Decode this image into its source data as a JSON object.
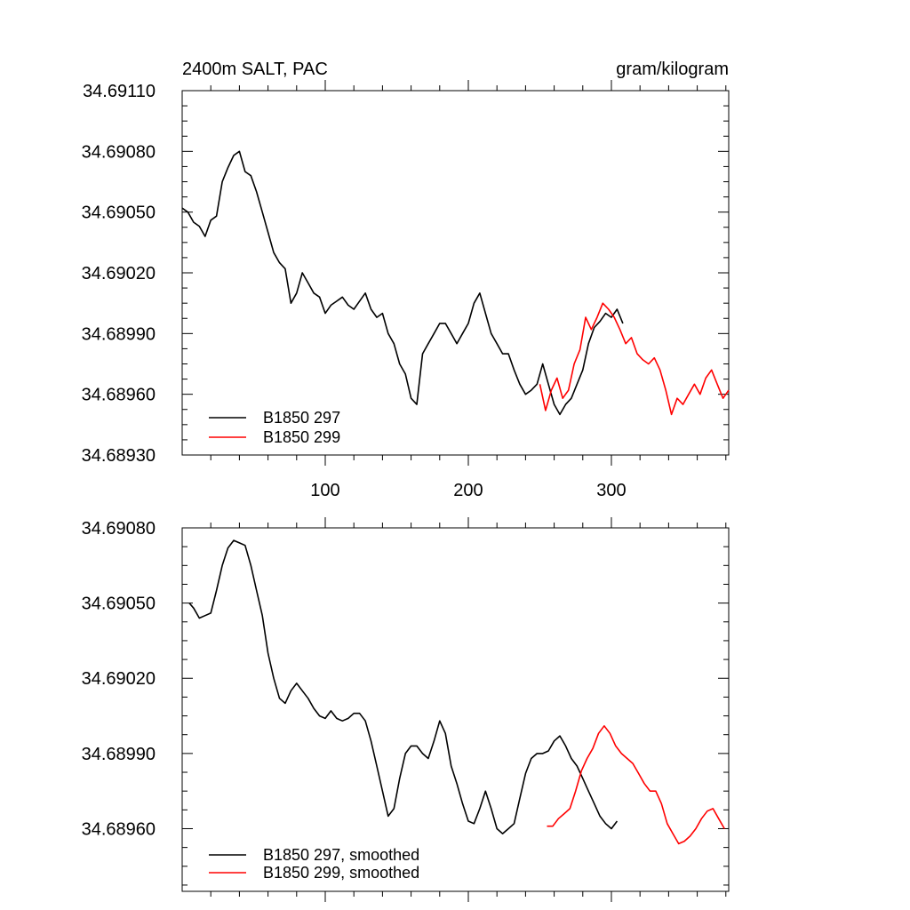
{
  "chart_data": [
    {
      "type": "line",
      "title": "2400m SALT, PAC",
      "units": "gram/kilogram",
      "xlabel": "",
      "ylabel": "",
      "xlim": [
        0,
        382
      ],
      "ylim": [
        34.6893,
        34.6911
      ],
      "x_ticks": [
        100,
        200,
        300
      ],
      "x_tick_labels": [
        "100",
        "200",
        "300"
      ],
      "y_ticks": [
        34.6893,
        34.6896,
        34.6899,
        34.6902,
        34.6905,
        34.6908,
        34.6911
      ],
      "y_tick_labels": [
        "34.68930",
        "34.68960",
        "34.68990",
        "34.69020",
        "34.69050",
        "34.69080",
        "34.69110"
      ],
      "grid": false,
      "legend_position": "bottom-left",
      "series": [
        {
          "name": "B1850 297",
          "color": "#000000",
          "x": [
            0,
            4,
            8,
            12,
            16,
            20,
            24,
            28,
            32,
            36,
            40,
            44,
            48,
            52,
            56,
            60,
            64,
            68,
            72,
            76,
            80,
            84,
            88,
            92,
            96,
            100,
            104,
            108,
            112,
            116,
            120,
            124,
            128,
            132,
            136,
            140,
            144,
            148,
            152,
            156,
            160,
            164,
            168,
            172,
            176,
            180,
            184,
            188,
            192,
            196,
            200,
            204,
            208,
            212,
            216,
            220,
            224,
            228,
            232,
            236,
            240,
            244,
            248,
            252,
            256,
            260,
            264,
            268,
            272,
            276,
            280,
            284,
            288,
            292,
            296,
            300,
            304,
            308
          ],
          "values": [
            34.69052,
            34.6905,
            34.69045,
            34.69043,
            34.69038,
            34.69046,
            34.69048,
            34.69065,
            34.69072,
            34.69078,
            34.6908,
            34.6907,
            34.69068,
            34.6906,
            34.6905,
            34.6904,
            34.6903,
            34.69025,
            34.69022,
            34.69005,
            34.6901,
            34.6902,
            34.69015,
            34.6901,
            34.69008,
            34.69,
            34.69004,
            34.69006,
            34.69008,
            34.69004,
            34.69002,
            34.69006,
            34.6901,
            34.69002,
            34.68998,
            34.69,
            34.6899,
            34.68985,
            34.68975,
            34.6897,
            34.68958,
            34.68955,
            34.6898,
            34.68985,
            34.6899,
            34.68995,
            34.68995,
            34.6899,
            34.68985,
            34.6899,
            34.68995,
            34.69005,
            34.6901,
            34.69,
            34.6899,
            34.68985,
            34.6898,
            34.6898,
            34.68972,
            34.68965,
            34.6896,
            34.68962,
            34.68965,
            34.68975,
            34.68965,
            34.68955,
            34.6895,
            34.68955,
            34.68958,
            34.68965,
            34.68972,
            34.68985,
            34.68993,
            34.68996,
            34.69,
            34.68998,
            34.69002,
            34.68995
          ]
        },
        {
          "name": "B1850 299",
          "color": "#ff0000",
          "x": [
            250,
            254,
            258,
            262,
            266,
            270,
            274,
            278,
            282,
            286,
            290,
            294,
            298,
            302,
            306,
            310,
            314,
            318,
            322,
            326,
            330,
            334,
            338,
            342,
            346,
            350,
            354,
            358,
            362,
            366,
            370,
            374,
            378,
            382
          ],
          "values": [
            34.68965,
            34.68952,
            34.68962,
            34.68968,
            34.68958,
            34.68962,
            34.68975,
            34.68982,
            34.68998,
            34.68992,
            34.68998,
            34.69005,
            34.69002,
            34.68998,
            34.68992,
            34.68985,
            34.68988,
            34.6898,
            34.68977,
            34.68975,
            34.68978,
            34.68972,
            34.68962,
            34.6895,
            34.68958,
            34.68955,
            34.6896,
            34.68965,
            34.6896,
            34.68968,
            34.68972,
            34.68965,
            34.68958,
            34.68962
          ]
        }
      ]
    },
    {
      "type": "line",
      "title": "",
      "xlabel": "",
      "ylabel": "",
      "xlim": [
        0,
        382
      ],
      "ylim": [
        34.68935,
        34.6908
      ],
      "x_ticks": [
        100,
        200,
        300
      ],
      "x_tick_labels": [
        "",
        "",
        ""
      ],
      "y_ticks": [
        34.6896,
        34.6899,
        34.6902,
        34.6905,
        34.6908
      ],
      "y_tick_labels": [
        "34.68960",
        "34.68990",
        "34.69020",
        "34.69050",
        "34.69080"
      ],
      "grid": false,
      "legend_position": "bottom-left",
      "series": [
        {
          "name": "B1850 297, smoothed",
          "color": "#000000",
          "x": [
            5,
            8,
            12,
            16,
            20,
            24,
            28,
            32,
            36,
            40,
            44,
            48,
            52,
            56,
            60,
            64,
            68,
            72,
            76,
            80,
            84,
            88,
            92,
            96,
            100,
            104,
            108,
            112,
            116,
            120,
            124,
            128,
            132,
            136,
            140,
            144,
            148,
            152,
            156,
            160,
            164,
            168,
            172,
            176,
            180,
            184,
            188,
            192,
            196,
            200,
            204,
            208,
            212,
            216,
            220,
            224,
            228,
            232,
            236,
            240,
            244,
            248,
            252,
            256,
            260,
            264,
            268,
            272,
            276,
            280,
            284,
            288,
            292,
            296,
            300,
            304
          ],
          "values": [
            34.6905,
            34.69048,
            34.69044,
            34.69045,
            34.69046,
            34.69055,
            34.69065,
            34.69072,
            34.69075,
            34.69074,
            34.69073,
            34.69065,
            34.69055,
            34.69045,
            34.6903,
            34.6902,
            34.69012,
            34.6901,
            34.69015,
            34.69018,
            34.69015,
            34.69012,
            34.69008,
            34.69005,
            34.69004,
            34.69007,
            34.69004,
            34.69003,
            34.69004,
            34.69006,
            34.69006,
            34.69003,
            34.68995,
            34.68985,
            34.68975,
            34.68965,
            34.68968,
            34.6898,
            34.6899,
            34.68993,
            34.68993,
            34.6899,
            34.68988,
            34.68995,
            34.69003,
            34.68998,
            34.68985,
            34.68978,
            34.6897,
            34.68963,
            34.68962,
            34.68968,
            34.68975,
            34.68968,
            34.6896,
            34.68958,
            34.6896,
            34.68962,
            34.68972,
            34.68982,
            34.68988,
            34.6899,
            34.6899,
            34.68991,
            34.68995,
            34.68997,
            34.68993,
            34.68988,
            34.68985,
            34.6898,
            34.68975,
            34.6897,
            34.68965,
            34.68962,
            34.6896,
            34.68963
          ]
        },
        {
          "name": "B1850 299, smoothed",
          "color": "#ff0000",
          "x": [
            255,
            259,
            263,
            267,
            271,
            275,
            279,
            283,
            287,
            291,
            295,
            299,
            303,
            307,
            311,
            315,
            319,
            323,
            327,
            331,
            335,
            339,
            343,
            347,
            351,
            355,
            359,
            363,
            367,
            371,
            375,
            379
          ],
          "values": [
            34.68961,
            34.68961,
            34.68964,
            34.68966,
            34.68968,
            34.68975,
            34.68983,
            34.68988,
            34.68992,
            34.68998,
            34.69001,
            34.68998,
            34.68993,
            34.6899,
            34.68988,
            34.68986,
            34.68982,
            34.68978,
            34.68975,
            34.68975,
            34.6897,
            34.68962,
            34.68958,
            34.68954,
            34.68955,
            34.68957,
            34.6896,
            34.68964,
            34.68967,
            34.68968,
            34.68964,
            34.6896
          ]
        }
      ]
    }
  ]
}
